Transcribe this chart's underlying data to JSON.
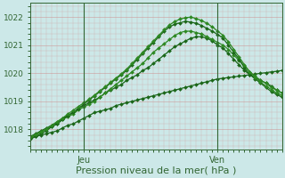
{
  "xlabel": "Pression niveau de la mer( hPa )",
  "xlabel_fontsize": 8,
  "ylim": [
    1017.3,
    1022.5
  ],
  "xlim": [
    0,
    47
  ],
  "yticks": [
    1018,
    1019,
    1020,
    1021,
    1022
  ],
  "xtick_positions": [
    10,
    35
  ],
  "xtick_labels": [
    "Jeu",
    "Ven"
  ],
  "bg_color": "#cce8e8",
  "plot_bg_color": "#cce8e8",
  "grid_color": "#cc8888",
  "vline_color": "#336633",
  "series": [
    [
      1017.7,
      1017.75,
      1017.8,
      1017.85,
      1017.9,
      1017.95,
      1018.05,
      1018.15,
      1018.2,
      1018.3,
      1018.4,
      1018.5,
      1018.6,
      1018.65,
      1018.7,
      1018.75,
      1018.85,
      1018.9,
      1018.95,
      1019.0,
      1019.05,
      1019.1,
      1019.15,
      1019.2,
      1019.25,
      1019.3,
      1019.35,
      1019.4,
      1019.45,
      1019.5,
      1019.55,
      1019.6,
      1019.65,
      1019.7,
      1019.75,
      1019.8,
      1019.82,
      1019.85,
      1019.87,
      1019.9,
      1019.92,
      1019.95,
      1019.97,
      1020.0,
      1020.02,
      1020.05,
      1020.07,
      1020.1
    ],
    [
      1017.75,
      1017.85,
      1017.95,
      1018.05,
      1018.15,
      1018.25,
      1018.4,
      1018.5,
      1018.6,
      1018.75,
      1018.85,
      1018.95,
      1019.05,
      1019.15,
      1019.3,
      1019.4,
      1019.5,
      1019.6,
      1019.75,
      1019.85,
      1019.95,
      1020.1,
      1020.2,
      1020.35,
      1020.5,
      1020.65,
      1020.8,
      1020.95,
      1021.05,
      1021.15,
      1021.25,
      1021.3,
      1021.3,
      1021.25,
      1021.15,
      1021.0,
      1020.9,
      1020.7,
      1020.5,
      1020.3,
      1020.1,
      1019.95,
      1019.85,
      1019.75,
      1019.65,
      1019.55,
      1019.4,
      1019.3
    ],
    [
      1017.7,
      1017.8,
      1017.9,
      1018.0,
      1018.1,
      1018.2,
      1018.35,
      1018.45,
      1018.55,
      1018.7,
      1018.8,
      1018.9,
      1019.0,
      1019.15,
      1019.3,
      1019.45,
      1019.6,
      1019.75,
      1019.9,
      1020.05,
      1020.2,
      1020.35,
      1020.55,
      1020.75,
      1020.9,
      1021.05,
      1021.2,
      1021.35,
      1021.45,
      1021.5,
      1021.5,
      1021.45,
      1021.4,
      1021.3,
      1021.2,
      1021.1,
      1021.0,
      1020.85,
      1020.65,
      1020.45,
      1020.25,
      1020.05,
      1019.9,
      1019.75,
      1019.65,
      1019.5,
      1019.4,
      1019.3
    ],
    [
      1017.65,
      1017.75,
      1017.85,
      1017.95,
      1018.1,
      1018.2,
      1018.35,
      1018.5,
      1018.6,
      1018.75,
      1018.9,
      1019.05,
      1019.2,
      1019.35,
      1019.5,
      1019.65,
      1019.8,
      1019.95,
      1020.1,
      1020.3,
      1020.5,
      1020.7,
      1020.9,
      1021.1,
      1021.3,
      1021.5,
      1021.65,
      1021.75,
      1021.8,
      1021.85,
      1021.82,
      1021.78,
      1021.7,
      1021.6,
      1021.5,
      1021.38,
      1021.25,
      1021.0,
      1020.75,
      1020.5,
      1020.2,
      1019.95,
      1019.8,
      1019.65,
      1019.5,
      1019.35,
      1019.25,
      1019.15
    ],
    [
      1017.72,
      1017.82,
      1017.92,
      1018.02,
      1018.15,
      1018.28,
      1018.4,
      1018.55,
      1018.68,
      1018.82,
      1018.95,
      1019.08,
      1019.22,
      1019.38,
      1019.52,
      1019.68,
      1019.83,
      1019.98,
      1020.15,
      1020.35,
      1020.55,
      1020.75,
      1020.95,
      1021.15,
      1021.35,
      1021.55,
      1021.72,
      1021.85,
      1021.93,
      1021.98,
      1022.0,
      1021.95,
      1021.88,
      1021.78,
      1021.65,
      1021.5,
      1021.35,
      1021.12,
      1020.85,
      1020.58,
      1020.3,
      1020.05,
      1019.85,
      1019.68,
      1019.55,
      1019.42,
      1019.3,
      1019.22
    ]
  ],
  "series_colors": [
    "#1a6618",
    "#1a6618",
    "#2d8822",
    "#1a6618",
    "#2d8822"
  ],
  "marker": "D",
  "markersize": 2.0,
  "linewidth": 0.9,
  "vline_positions": [
    10,
    35
  ]
}
